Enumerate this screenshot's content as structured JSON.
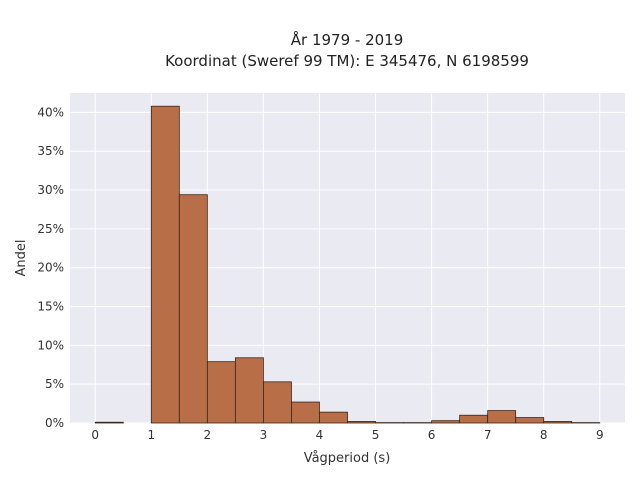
{
  "chart_data": {
    "type": "bar",
    "title_lines": [
      "År 1979 - 2019",
      "Koordinat (Sweref 99 TM): E 345476, N 6198599"
    ],
    "xlabel": "Vågperiod (s)",
    "ylabel": "Andel",
    "x_ticks": [
      0,
      1,
      2,
      3,
      4,
      5,
      6,
      7,
      8,
      9
    ],
    "y_ticks": [
      0,
      5,
      10,
      15,
      20,
      25,
      30,
      35,
      40
    ],
    "y_tick_suffix": "%",
    "xlim": [
      -0.45,
      9.45
    ],
    "ylim": [
      0,
      42.5
    ],
    "bin_width": 0.5,
    "bin_starts": [
      0,
      0.5,
      1.0,
      1.5,
      2.0,
      2.5,
      3.0,
      3.5,
      4.0,
      4.5,
      5.0,
      5.5,
      6.0,
      6.5,
      7.0,
      7.5,
      8.0,
      8.5
    ],
    "values": [
      0.1,
      0,
      40.8,
      29.4,
      7.9,
      8.4,
      5.3,
      2.7,
      1.4,
      0.2,
      0.05,
      0.05,
      0.3,
      1.0,
      1.6,
      0.7,
      0.2,
      0.05
    ],
    "bar_color": "#b86e47",
    "background_color": "#eaeaf2",
    "grid": true
  }
}
